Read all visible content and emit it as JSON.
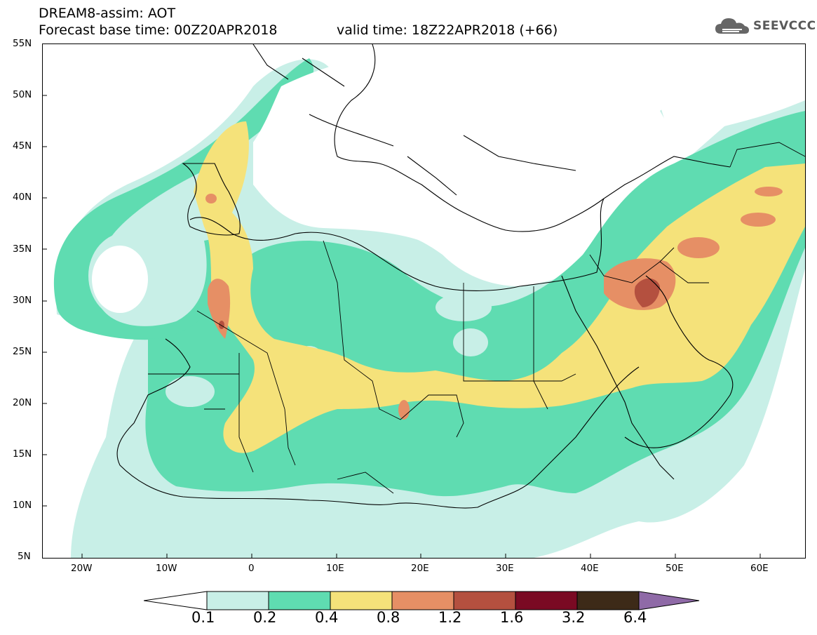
{
  "header": {
    "title_line1": "DREAM8-assim: AOT",
    "forecast_base": "Forecast base time: 00Z20APR2018",
    "valid_time": "valid time: 18Z22APR2018 (+66)"
  },
  "logo": {
    "text": "SEEVCCC",
    "icon": "cloud-logo-icon"
  },
  "map": {
    "lat_labels": [
      "55N",
      "50N",
      "45N",
      "40N",
      "35N",
      "30N",
      "25N",
      "20N",
      "15N",
      "10N",
      "5N"
    ],
    "lon_labels": [
      "20W",
      "10W",
      "0",
      "10E",
      "20E",
      "30E",
      "40E",
      "50E",
      "60E"
    ]
  },
  "colorbar": {
    "labels": [
      "0.1",
      "0.2",
      "0.4",
      "0.8",
      "1.2",
      "1.6",
      "3.2",
      "6.4"
    ],
    "colors": [
      "#ffffff",
      "#c8efe7",
      "#5fdcb1",
      "#f5e27a",
      "#e68f65",
      "#b4503f",
      "#7a0a23",
      "#3d2a18",
      "#8f6aa7"
    ]
  },
  "palette": {
    "c01": "#c8efe7",
    "c02": "#5fdcb1",
    "c04": "#f5e27a",
    "c08": "#e68f65",
    "c12": "#b4503f"
  }
}
